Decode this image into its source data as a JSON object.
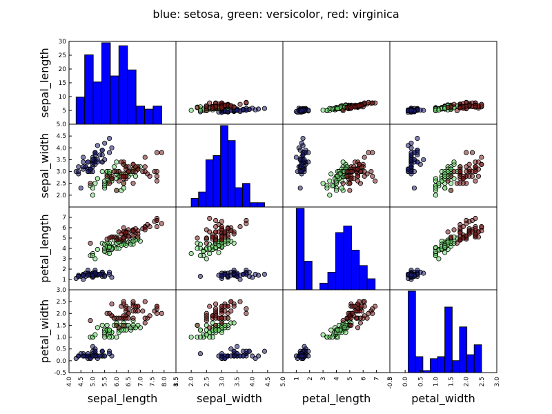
{
  "chart_data": {
    "type": "scatter-matrix",
    "title": "blue: setosa, green: versicolor, red: virginica",
    "variables": [
      "sepal_length",
      "sepal_width",
      "petal_length",
      "petal_width"
    ],
    "grid": false,
    "colors": {
      "setosa": "#1a1a6e",
      "versicolor": "#6fdc6f",
      "virginica": "#7a1a1a",
      "hist": "#0000ff"
    },
    "x_axes": [
      {
        "lim": [
          4.0,
          8.5
        ],
        "ticks": [
          "4.0",
          "4.5",
          "5.0",
          "5.5",
          "6.0",
          "6.5",
          "7.0",
          "7.5",
          "8.0",
          "8.5"
        ]
      },
      {
        "lim": [
          1.5,
          5.0
        ],
        "ticks": [
          "1.5",
          "2.0",
          "2.5",
          "3.0",
          "3.5",
          "4.0",
          "4.5",
          "5.0"
        ]
      },
      {
        "lim": [
          0,
          8
        ],
        "ticks": [
          "0",
          "1",
          "2",
          "3",
          "4",
          "5",
          "6",
          "7",
          "8"
        ]
      },
      {
        "lim": [
          -0.5,
          3.0
        ],
        "ticks": [
          "-0.5",
          "0.0",
          "0.5",
          "1.0",
          "1.5",
          "2.0",
          "2.5",
          "3.0"
        ]
      }
    ],
    "y_axes": [
      {
        "lim": [
          0,
          30
        ],
        "ticks": [
          "5",
          "10",
          "15",
          "20",
          "25",
          "30"
        ]
      },
      {
        "lim": [
          1.5,
          5.0
        ],
        "ticks": [
          "2.0",
          "2.5",
          "3.0",
          "3.5",
          "4.0",
          "4.5",
          "5.0"
        ]
      },
      {
        "lim": [
          0,
          8
        ],
        "ticks": [
          "1",
          "2",
          "3",
          "4",
          "5",
          "6",
          "7"
        ]
      },
      {
        "lim": [
          -0.5,
          3.0
        ],
        "ticks": [
          "-0.5",
          "0.0",
          "0.5",
          "1.0",
          "1.5",
          "2.0",
          "2.5",
          "3.0"
        ]
      }
    ],
    "histograms": [
      {
        "edges": [
          4.3,
          4.66,
          5.02,
          5.38,
          5.74,
          6.1,
          6.46,
          6.82,
          7.18,
          7.54,
          7.9
        ],
        "counts": [
          9,
          23,
          14,
          27,
          16,
          26,
          18,
          6,
          5,
          6
        ]
      },
      {
        "edges": [
          2.0,
          2.24,
          2.48,
          2.72,
          2.96,
          3.2,
          3.44,
          3.68,
          3.92,
          4.16,
          4.4
        ],
        "counts": [
          4,
          7,
          22,
          24,
          38,
          31,
          9,
          11,
          2,
          2
        ]
      },
      {
        "edges": [
          1.0,
          1.59,
          2.18,
          2.77,
          3.36,
          3.95,
          4.54,
          5.13,
          5.72,
          6.31,
          6.9
        ],
        "counts": [
          37,
          13,
          0,
          3,
          8,
          26,
          29,
          18,
          11,
          5
        ]
      },
      {
        "edges": [
          0.1,
          0.34,
          0.58,
          0.82,
          1.06,
          1.3,
          1.54,
          1.78,
          2.02,
          2.26,
          2.5
        ],
        "counts": [
          41,
          8,
          1,
          7,
          8,
          33,
          6,
          23,
          9,
          14
        ]
      }
    ],
    "series": [
      {
        "name": "setosa",
        "points": [
          [
            5.1,
            3.5,
            1.4,
            0.2
          ],
          [
            4.9,
            3.0,
            1.4,
            0.2
          ],
          [
            4.7,
            3.2,
            1.3,
            0.2
          ],
          [
            4.6,
            3.1,
            1.5,
            0.2
          ],
          [
            5.0,
            3.6,
            1.4,
            0.2
          ],
          [
            5.4,
            3.9,
            1.7,
            0.4
          ],
          [
            4.6,
            3.4,
            1.4,
            0.3
          ],
          [
            5.0,
            3.4,
            1.5,
            0.2
          ],
          [
            4.4,
            2.9,
            1.4,
            0.2
          ],
          [
            4.9,
            3.1,
            1.5,
            0.1
          ],
          [
            5.4,
            3.7,
            1.5,
            0.2
          ],
          [
            4.8,
            3.4,
            1.6,
            0.2
          ],
          [
            4.8,
            3.0,
            1.4,
            0.1
          ],
          [
            4.3,
            3.0,
            1.1,
            0.1
          ],
          [
            5.8,
            4.0,
            1.2,
            0.2
          ],
          [
            5.7,
            4.4,
            1.5,
            0.4
          ],
          [
            5.4,
            3.9,
            1.3,
            0.4
          ],
          [
            5.1,
            3.5,
            1.4,
            0.3
          ],
          [
            5.7,
            3.8,
            1.7,
            0.3
          ],
          [
            5.1,
            3.8,
            1.5,
            0.3
          ],
          [
            5.4,
            3.4,
            1.7,
            0.2
          ],
          [
            5.1,
            3.7,
            1.5,
            0.4
          ],
          [
            4.6,
            3.6,
            1.0,
            0.2
          ],
          [
            5.1,
            3.3,
            1.7,
            0.5
          ],
          [
            4.8,
            3.4,
            1.9,
            0.2
          ],
          [
            5.0,
            3.0,
            1.6,
            0.2
          ],
          [
            5.0,
            3.4,
            1.6,
            0.4
          ],
          [
            5.2,
            3.5,
            1.5,
            0.2
          ],
          [
            5.2,
            3.4,
            1.4,
            0.2
          ],
          [
            4.7,
            3.2,
            1.6,
            0.2
          ],
          [
            4.8,
            3.1,
            1.6,
            0.2
          ],
          [
            5.4,
            3.4,
            1.5,
            0.4
          ],
          [
            5.2,
            4.1,
            1.5,
            0.1
          ],
          [
            5.5,
            4.2,
            1.4,
            0.2
          ],
          [
            4.9,
            3.1,
            1.5,
            0.1
          ],
          [
            5.0,
            3.2,
            1.2,
            0.2
          ],
          [
            5.5,
            3.5,
            1.3,
            0.2
          ],
          [
            4.9,
            3.1,
            1.5,
            0.1
          ],
          [
            4.4,
            3.0,
            1.3,
            0.2
          ],
          [
            5.1,
            3.4,
            1.5,
            0.2
          ],
          [
            5.0,
            3.5,
            1.3,
            0.3
          ],
          [
            4.5,
            2.3,
            1.3,
            0.3
          ],
          [
            4.4,
            3.2,
            1.3,
            0.2
          ],
          [
            5.0,
            3.5,
            1.6,
            0.6
          ],
          [
            5.1,
            3.8,
            1.9,
            0.4
          ],
          [
            4.8,
            3.0,
            1.4,
            0.3
          ],
          [
            5.1,
            3.8,
            1.6,
            0.2
          ],
          [
            4.6,
            3.2,
            1.4,
            0.2
          ],
          [
            5.3,
            3.7,
            1.5,
            0.2
          ],
          [
            5.0,
            3.3,
            1.4,
            0.2
          ]
        ]
      },
      {
        "name": "versicolor",
        "points": [
          [
            7.0,
            3.2,
            4.7,
            1.4
          ],
          [
            6.4,
            3.2,
            4.5,
            1.5
          ],
          [
            6.9,
            3.1,
            4.9,
            1.5
          ],
          [
            5.5,
            2.3,
            4.0,
            1.3
          ],
          [
            6.5,
            2.8,
            4.6,
            1.5
          ],
          [
            5.7,
            2.8,
            4.5,
            1.3
          ],
          [
            6.3,
            3.3,
            4.7,
            1.6
          ],
          [
            4.9,
            2.4,
            3.3,
            1.0
          ],
          [
            6.6,
            2.9,
            4.6,
            1.3
          ],
          [
            5.2,
            2.7,
            3.9,
            1.4
          ],
          [
            5.0,
            2.0,
            3.5,
            1.0
          ],
          [
            5.9,
            3.0,
            4.2,
            1.5
          ],
          [
            6.0,
            2.2,
            4.0,
            1.0
          ],
          [
            6.1,
            2.9,
            4.7,
            1.4
          ],
          [
            5.6,
            2.9,
            3.6,
            1.3
          ],
          [
            6.7,
            3.1,
            4.4,
            1.4
          ],
          [
            5.6,
            3.0,
            4.5,
            1.5
          ],
          [
            5.8,
            2.7,
            4.1,
            1.0
          ],
          [
            6.2,
            2.2,
            4.5,
            1.5
          ],
          [
            5.6,
            2.5,
            3.9,
            1.1
          ],
          [
            5.9,
            3.2,
            4.8,
            1.8
          ],
          [
            6.1,
            2.8,
            4.0,
            1.3
          ],
          [
            6.3,
            2.5,
            4.9,
            1.5
          ],
          [
            6.1,
            2.8,
            4.7,
            1.2
          ],
          [
            6.4,
            2.9,
            4.3,
            1.3
          ],
          [
            6.6,
            3.0,
            4.4,
            1.4
          ],
          [
            6.8,
            2.8,
            4.8,
            1.4
          ],
          [
            6.7,
            3.0,
            5.0,
            1.7
          ],
          [
            6.0,
            2.9,
            4.5,
            1.5
          ],
          [
            5.7,
            2.6,
            3.5,
            1.0
          ],
          [
            5.5,
            2.4,
            3.8,
            1.1
          ],
          [
            5.5,
            2.4,
            3.7,
            1.0
          ],
          [
            5.8,
            2.7,
            3.9,
            1.2
          ],
          [
            6.0,
            2.7,
            5.1,
            1.6
          ],
          [
            5.4,
            3.0,
            4.5,
            1.5
          ],
          [
            6.0,
            3.4,
            4.5,
            1.6
          ],
          [
            6.7,
            3.1,
            4.7,
            1.5
          ],
          [
            6.3,
            2.3,
            4.4,
            1.3
          ],
          [
            5.6,
            3.0,
            4.1,
            1.3
          ],
          [
            5.5,
            2.5,
            4.0,
            1.3
          ],
          [
            5.5,
            2.6,
            4.4,
            1.2
          ],
          [
            6.1,
            3.0,
            4.6,
            1.4
          ],
          [
            5.8,
            2.6,
            4.0,
            1.2
          ],
          [
            5.0,
            2.3,
            3.3,
            1.0
          ],
          [
            5.6,
            2.7,
            4.2,
            1.3
          ],
          [
            5.7,
            3.0,
            4.2,
            1.2
          ],
          [
            5.7,
            2.9,
            4.2,
            1.3
          ],
          [
            6.2,
            2.9,
            4.3,
            1.3
          ],
          [
            5.1,
            2.5,
            3.0,
            1.1
          ],
          [
            5.7,
            2.8,
            4.1,
            1.3
          ]
        ]
      },
      {
        "name": "virginica",
        "points": [
          [
            6.3,
            3.3,
            6.0,
            2.5
          ],
          [
            5.8,
            2.7,
            5.1,
            1.9
          ],
          [
            7.1,
            3.0,
            5.9,
            2.1
          ],
          [
            6.3,
            2.9,
            5.6,
            1.8
          ],
          [
            6.5,
            3.0,
            5.8,
            2.2
          ],
          [
            7.6,
            3.0,
            6.6,
            2.1
          ],
          [
            4.9,
            2.5,
            4.5,
            1.7
          ],
          [
            7.3,
            2.9,
            6.3,
            1.8
          ],
          [
            6.7,
            2.5,
            5.8,
            1.8
          ],
          [
            7.2,
            3.6,
            6.1,
            2.5
          ],
          [
            6.5,
            3.2,
            5.1,
            2.0
          ],
          [
            6.4,
            2.7,
            5.3,
            1.9
          ],
          [
            6.8,
            3.0,
            5.5,
            2.1
          ],
          [
            5.7,
            2.5,
            5.0,
            2.0
          ],
          [
            5.8,
            2.8,
            5.1,
            2.4
          ],
          [
            6.4,
            3.2,
            5.3,
            2.3
          ],
          [
            6.5,
            3.0,
            5.5,
            1.8
          ],
          [
            7.7,
            3.8,
            6.7,
            2.2
          ],
          [
            7.7,
            2.6,
            6.9,
            2.3
          ],
          [
            6.0,
            2.2,
            5.0,
            1.5
          ],
          [
            6.9,
            3.2,
            5.7,
            2.3
          ],
          [
            5.6,
            2.8,
            4.9,
            2.0
          ],
          [
            7.7,
            2.8,
            6.7,
            2.0
          ],
          [
            6.3,
            2.7,
            4.9,
            1.8
          ],
          [
            6.7,
            3.3,
            5.7,
            2.1
          ],
          [
            7.2,
            3.2,
            6.0,
            1.8
          ],
          [
            6.2,
            2.8,
            4.8,
            1.8
          ],
          [
            6.1,
            3.0,
            4.9,
            1.8
          ],
          [
            6.4,
            2.8,
            5.6,
            2.1
          ],
          [
            7.2,
            3.0,
            5.8,
            1.6
          ],
          [
            7.4,
            2.8,
            6.1,
            1.9
          ],
          [
            7.9,
            3.8,
            6.4,
            2.0
          ],
          [
            6.4,
            2.8,
            5.6,
            2.2
          ],
          [
            6.3,
            2.8,
            5.1,
            1.5
          ],
          [
            6.1,
            2.6,
            5.6,
            1.4
          ],
          [
            7.7,
            3.0,
            6.1,
            2.3
          ],
          [
            6.3,
            3.4,
            5.6,
            2.4
          ],
          [
            6.4,
            3.1,
            5.5,
            1.8
          ],
          [
            6.0,
            3.0,
            4.8,
            1.8
          ],
          [
            6.9,
            3.1,
            5.4,
            2.1
          ],
          [
            6.7,
            3.1,
            5.6,
            2.4
          ],
          [
            6.9,
            3.1,
            5.1,
            2.3
          ],
          [
            5.8,
            2.7,
            5.1,
            1.9
          ],
          [
            6.8,
            3.2,
            5.9,
            2.3
          ],
          [
            6.7,
            3.3,
            5.7,
            2.5
          ],
          [
            6.7,
            3.0,
            5.2,
            2.3
          ],
          [
            6.3,
            2.5,
            5.0,
            1.9
          ],
          [
            6.5,
            3.0,
            5.2,
            2.0
          ],
          [
            6.2,
            3.4,
            5.4,
            2.3
          ],
          [
            5.9,
            3.0,
            5.1,
            1.8
          ]
        ]
      }
    ]
  }
}
